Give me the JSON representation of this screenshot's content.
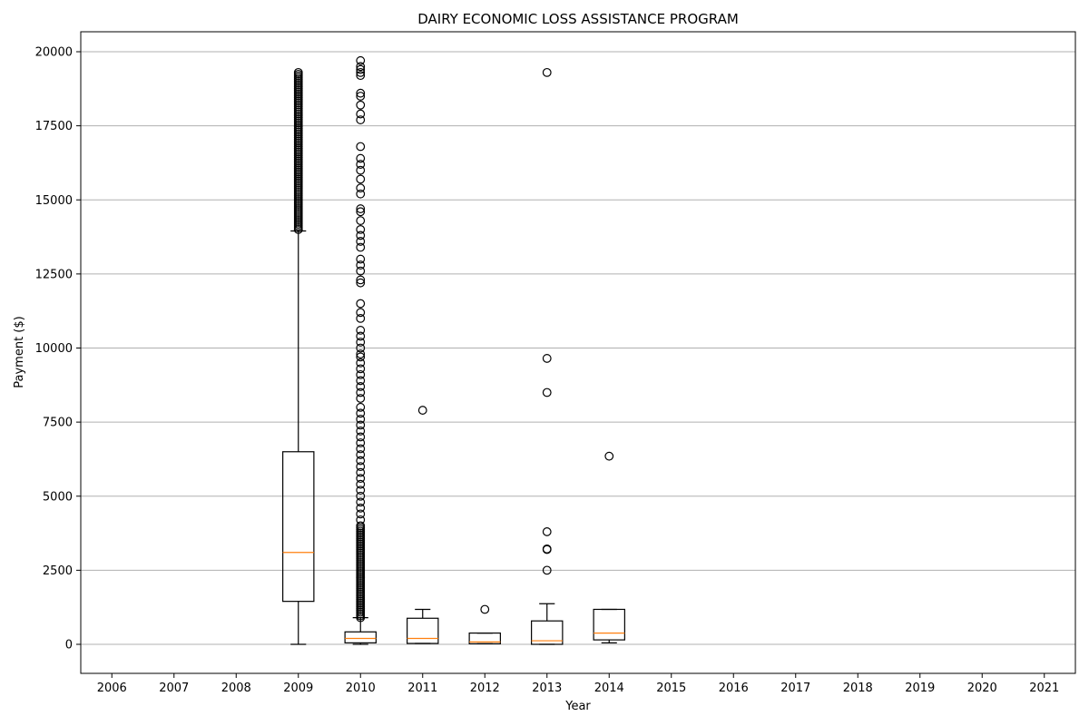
{
  "chart_data": {
    "type": "boxplot",
    "title": "DAIRY ECONOMIC LOSS ASSISTANCE PROGRAM",
    "xlabel": "Year",
    "ylabel": "Payment ($)",
    "categories": [
      "2006",
      "2007",
      "2008",
      "2009",
      "2010",
      "2011",
      "2012",
      "2013",
      "2014",
      "2015",
      "2016",
      "2017",
      "2018",
      "2019",
      "2020",
      "2021"
    ],
    "ylim": [
      -1000,
      20700
    ],
    "yticks": [
      0,
      2500,
      5000,
      7500,
      10000,
      12500,
      15000,
      17500,
      20000
    ],
    "grid": "y",
    "colors": {
      "box": "#000000",
      "median": "#ff7f0e",
      "grid": "#b0b0b0"
    },
    "boxes": [
      {
        "category": "2009",
        "whisker_low": 0,
        "q1": 1450,
        "median": 3100,
        "q3": 6500,
        "whisker_high": 13950,
        "outlier_range": [
          14000,
          19300
        ]
      },
      {
        "category": "2010",
        "whisker_low": 0,
        "q1": 50,
        "median": 200,
        "q3": 420,
        "whisker_high": 900,
        "outlier_range": [
          900,
          4000
        ],
        "outliers": [
          4200,
          4400,
          4600,
          4800,
          5000,
          5200,
          5400,
          5600,
          5800,
          6000,
          6200,
          6400,
          6600,
          6800,
          7000,
          7200,
          7400,
          7600,
          7800,
          8000,
          8300,
          8500,
          8700,
          8900,
          9100,
          9300,
          9500,
          9700,
          9800,
          10000,
          10200,
          10400,
          10600,
          11000,
          11200,
          11500,
          12200,
          12300,
          12600,
          12800,
          13000,
          13400,
          13600,
          13800,
          14000,
          14300,
          14600,
          14700,
          15200,
          15400,
          15700,
          16000,
          16200,
          16400,
          16800,
          17700,
          17900,
          18200,
          18500,
          18600,
          19200,
          19300,
          19400,
          19500,
          19700
        ]
      },
      {
        "category": "2011",
        "whisker_low": 30,
        "q1": 30,
        "median": 200,
        "q3": 880,
        "whisker_high": 1180,
        "outliers": [
          7900
        ]
      },
      {
        "category": "2012",
        "whisker_low": 20,
        "q1": 20,
        "median": 80,
        "q3": 380,
        "whisker_high": 380,
        "outliers": [
          1180
        ]
      },
      {
        "category": "2013",
        "whisker_low": 0,
        "q1": 0,
        "median": 120,
        "q3": 790,
        "whisker_high": 1370,
        "outliers": [
          2500,
          3200,
          3220,
          3800,
          8500,
          9650,
          19300
        ]
      },
      {
        "category": "2014",
        "whisker_low": 50,
        "q1": 150,
        "median": 380,
        "q3": 1180,
        "whisker_high": 1180,
        "outliers": [
          6350
        ]
      }
    ]
  }
}
